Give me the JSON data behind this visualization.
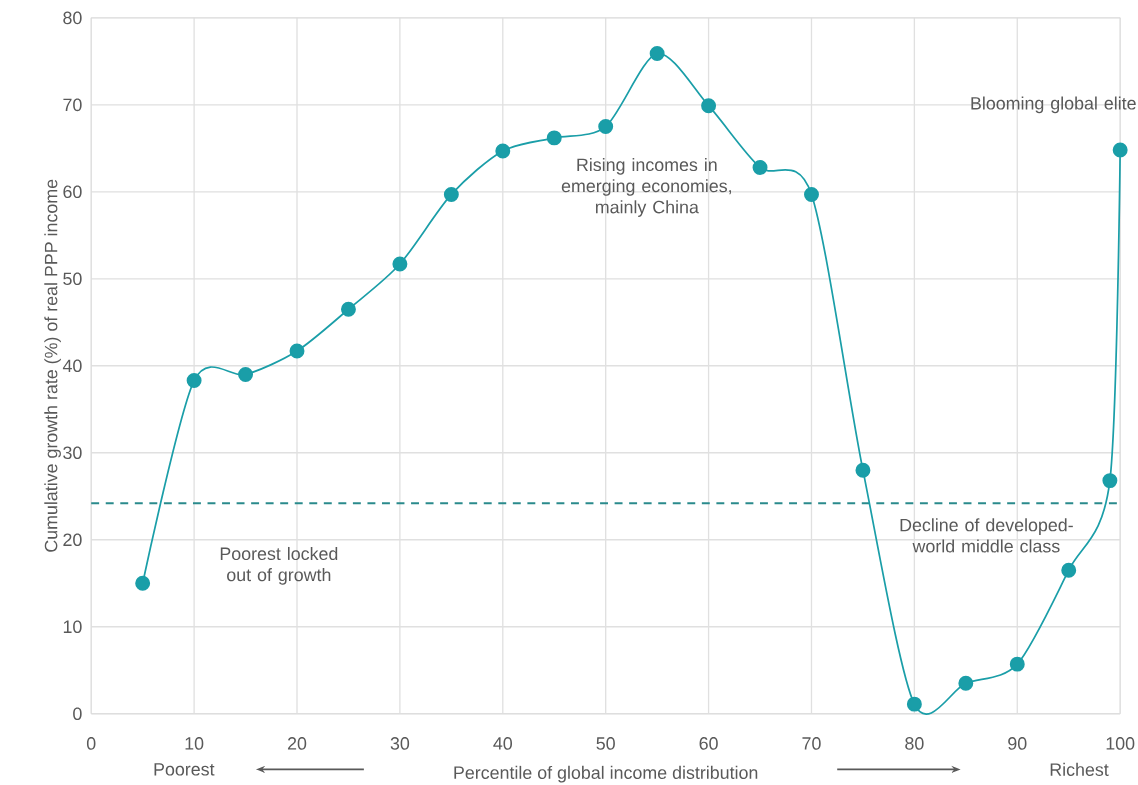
{
  "chart_data": {
    "type": "line",
    "xlabel": "Percentile of global income distribution",
    "ylabel": "Cumulative growth rate (%) of real PPP income",
    "x": [
      5,
      10,
      15,
      20,
      25,
      30,
      35,
      40,
      45,
      50,
      55,
      60,
      65,
      70,
      75,
      80,
      85,
      90,
      95,
      99,
      100
    ],
    "values": [
      15.0,
      38.3,
      39.0,
      41.7,
      46.5,
      51.7,
      59.7,
      64.7,
      66.2,
      67.5,
      75.9,
      69.9,
      62.8,
      59.7,
      28.0,
      1.1,
      3.5,
      5.7,
      16.5,
      26.8,
      64.8
    ],
    "color": "#1a9ea8",
    "marker": "circle",
    "grid": true,
    "xlim": [
      0,
      100
    ],
    "ylim": [
      0,
      80
    ],
    "xticks": [
      0,
      10,
      20,
      30,
      40,
      50,
      60,
      70,
      80,
      90,
      100
    ],
    "yticks": [
      0,
      10,
      20,
      30,
      40,
      50,
      60,
      70,
      80
    ],
    "ref_lines": [
      {
        "axis": "y",
        "value": 24.2,
        "color": "#2a8a8c",
        "line_style": "dashed"
      }
    ],
    "annotations": [
      "Poorest locked out of growth",
      "Rising incomes in emerging economies, mainly China",
      "Blooming global elite",
      "Decline of developed-world middle class",
      "Poorest",
      "Richest"
    ]
  }
}
